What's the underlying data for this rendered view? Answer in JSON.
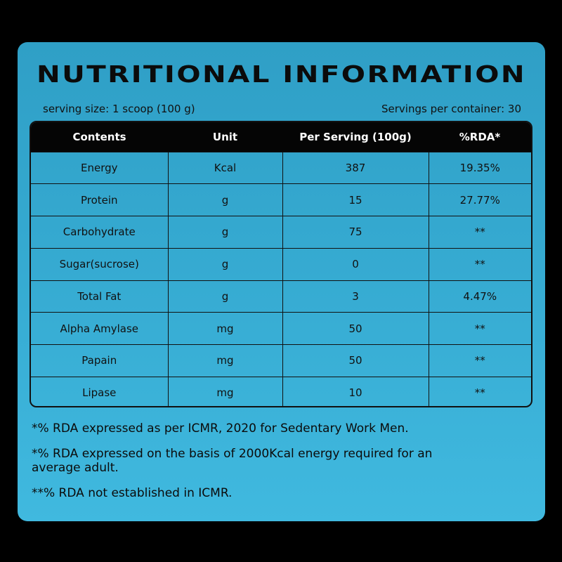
{
  "title": "NUTRITIONAL INFORMATION",
  "serving_size": "serving size: 1 scoop (100 g)",
  "servings_per_container": "Servings per container: 30",
  "table": {
    "headers": [
      "Contents",
      "Unit",
      "Per Serving (100g)",
      "%RDA*"
    ],
    "rows": [
      [
        "Energy",
        "Kcal",
        "387",
        "19.35%"
      ],
      [
        "Protein",
        "g",
        "15",
        "27.77%"
      ],
      [
        "Carbohydrate",
        "g",
        "75",
        "**"
      ],
      [
        "Sugar(sucrose)",
        "g",
        "0",
        "**"
      ],
      [
        "Total Fat",
        "g",
        "3",
        "4.47%"
      ],
      [
        "Alpha Amylase",
        "mg",
        "50",
        "**"
      ],
      [
        "Papain",
        "mg",
        "50",
        "**"
      ],
      [
        "Lipase",
        "mg",
        "10",
        "**"
      ]
    ]
  },
  "notes": [
    "*% RDA expressed as per ICMR, 2020 for Sedentary Work Men.",
    "*% RDA expressed on the basis of 2000Kcal energy required for an average adult.",
    "**% RDA not established in ICMR."
  ],
  "colors": {
    "background": "#000000",
    "panel": "#36abd2",
    "header_row": "#050505",
    "text": "#111111"
  }
}
